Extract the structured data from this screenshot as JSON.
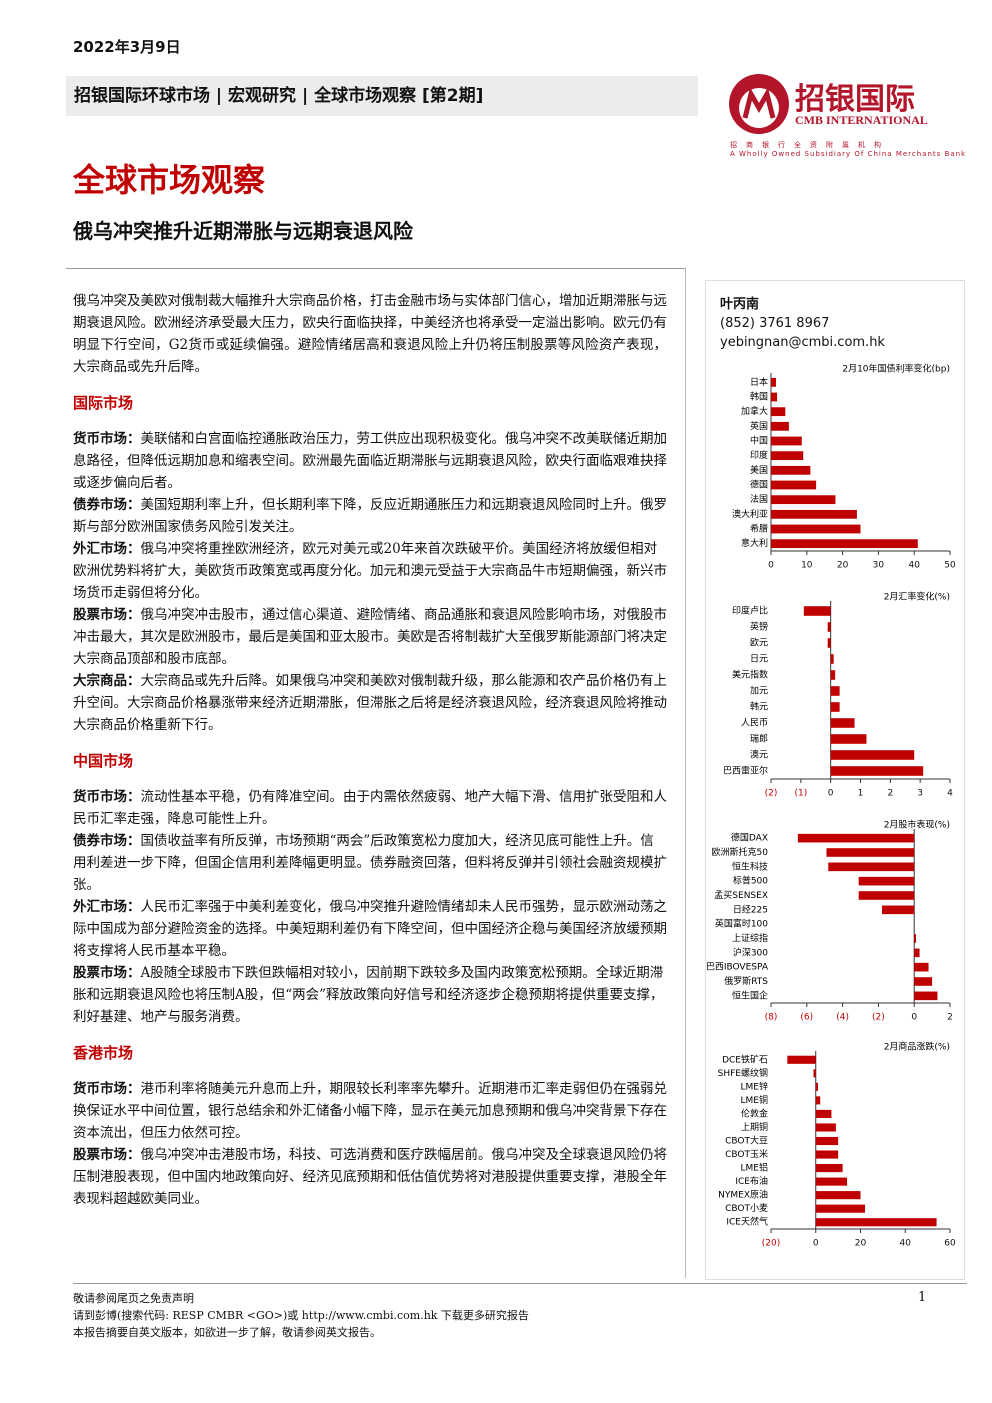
{
  "header": {
    "date": "2022年3月9日",
    "breadcrumb": "招银国际环球市场 | 宏观研究 | 全球市场观察 [第2期]",
    "logo_name": "招银国际",
    "logo_en": "CMB INTERNATIONAL",
    "logo_sub1": "招商银行全资附属机构",
    "logo_sub2": "A Wholly Owned Subsidiary Of China Merchants Bank"
  },
  "title": "全球市场观察",
  "subtitle": "俄乌冲突推升近期滞胀与远期衰退风险",
  "summary": "俄乌冲突及美欧对俄制裁大幅推升大宗商品价格，打击金融市场与实体部门信心，增加近期滞胀与远期衰退风险。欧洲经济承受最大压力，欧央行面临抉择，中美经济也将承受一定溢出影响。欧元仍有明显下行空间，G2货币或延续偏强。避险情绪居高和衰退风险上升仍将压制股票等风险资产表现，大宗商品或先升后降。",
  "sections": [
    {
      "heading": "国际市场",
      "items": [
        {
          "label": "货币市场：",
          "text": "美联储和白宫面临控通胀政治压力，劳工供应出现积极变化。俄乌冲突不改美联储近期加息路径，但降低远期加息和缩表空间。欧洲最先面临近期滞胀与远期衰退风险，欧央行面临艰难抉择或逐步偏向后者。"
        },
        {
          "label": "债券市场：",
          "text": "美国短期利率上升，但长期利率下降，反应近期通胀压力和远期衰退风险同时上升。俄罗斯与部分欧洲国家债务风险引发关注。"
        },
        {
          "label": "外汇市场：",
          "text": "俄乌冲突将重挫欧洲经济，欧元对美元或20年来首次跌破平价。美国经济将放缓但相对欧洲优势料将扩大，美欧货币政策宽或再度分化。加元和澳元受益于大宗商品牛市短期偏强，新兴市场货币走弱但将分化。"
        },
        {
          "label": "股票市场：",
          "text": "俄乌冲突冲击股市，通过信心渠道、避险情绪、商品通胀和衰退风险影响市场，对俄股市冲击最大，其次是欧洲股市，最后是美国和亚太股市。美欧是否将制裁扩大至俄罗斯能源部门将决定大宗商品顶部和股市底部。"
        },
        {
          "label": "大宗商品：",
          "text": "大宗商品或先升后降。如果俄乌冲突和美欧对俄制裁升级，那么能源和农产品价格仍有上升空间。大宗商品价格暴涨带来经济近期滞胀，但滞胀之后将是经济衰退风险，经济衰退风险将推动大宗商品价格重新下行。"
        }
      ]
    },
    {
      "heading": "中国市场",
      "items": [
        {
          "label": "货币市场：",
          "text": "流动性基本平稳，仍有降准空间。由于内需依然疲弱、地产大幅下滑、信用扩张受阻和人民币汇率走强，降息可能性上升。"
        },
        {
          "label": "债券市场：",
          "text": "国债收益率有所反弹，市场预期“两会”后政策宽松力度加大，经济见底可能性上升。信用利差进一步下降，但国企信用利差降幅更明显。债券融资回落，但料将反弹并引领社会融资规模扩张。"
        },
        {
          "label": "外汇市场：",
          "text": "人民币汇率强于中美利差变化，俄乌冲突推升避险情绪却未人民币强势，显示欧洲动荡之际中国成为部分避险资金的选择。中美短期利差仍有下降空间，但中国经济企稳与美国经济放缓预期将支撑将人民币基本平稳。"
        },
        {
          "label": "股票市场：",
          "text": "A股随全球股市下跌但跌幅相对较小，因前期下跌较多及国内政策宽松预期。全球近期滞胀和远期衰退风险也将压制A股，但“两会”释放政策向好信号和经济逐步企稳预期将提供重要支撑，利好基建、地产与服务消费。"
        }
      ]
    },
    {
      "heading": "香港市场",
      "items": [
        {
          "label": "货币市场：",
          "text": "港币利率将随美元升息而上升，期限较长利率率先攀升。近期港币汇率走弱但仍在强弱兑换保证水平中间位置，银行总结余和外汇储备小幅下降，显示在美元加息预期和俄乌冲突背景下存在资本流出，但压力依然可控。"
        },
        {
          "label": "股票市场：",
          "text": "俄乌冲突冲击港股市场，科技、可选消费和医疗跌幅居前。俄乌冲突及全球衰退风险仍将压制港股表现，但中国内地政策向好、经济见底预期和低估值优势将对港股提供重要支撑，港股全年表现料超越欧美同业。"
        }
      ]
    }
  ],
  "author": {
    "name": "叶丙南",
    "phone": "(852) 3761 8967",
    "email": "yebingnan@cmbi.com.hk"
  },
  "chart_data": [
    {
      "type": "hbar",
      "title": "2月10年国债利率变化(bp)",
      "color": "#c00000",
      "categories": [
        "日本",
        "韩国",
        "加拿大",
        "英国",
        "中国",
        "印度",
        "美国",
        "德国",
        "法国",
        "澳大利亚",
        "希腊",
        "意大利"
      ],
      "values": [
        1.4,
        1.7,
        4,
        5,
        8.6,
        9,
        11,
        12.6,
        18,
        24,
        25,
        41
      ],
      "xlim": [
        0,
        50
      ],
      "xticks": [
        0,
        10,
        20,
        30,
        40,
        50
      ]
    },
    {
      "type": "hbar",
      "title": "2月汇率变化(%)",
      "color": "#c00000",
      "categories": [
        "印度卢比",
        "英镑",
        "欧元",
        "日元",
        "美元指数",
        "加元",
        "韩元",
        "人民币",
        "瑞郎",
        "澳元",
        "巴西雷亚尔"
      ],
      "values": [
        -0.9,
        -0.1,
        -0.1,
        0.1,
        0.15,
        0.3,
        0.3,
        0.8,
        1.2,
        2.8,
        3.1
      ],
      "xlim": [
        -2,
        4
      ],
      "xticks": [
        {
          "value": -2,
          "label": "(2)"
        },
        {
          "value": -1,
          "label": "(1)"
        },
        0,
        1,
        2,
        3,
        4
      ]
    },
    {
      "type": "hbar",
      "title": "2月股市表现(%)",
      "color": "#c00000",
      "categories": [
        "德国DAX",
        "欧洲斯托克50",
        "恒生科技",
        "标普500",
        "孟买SENSEX",
        "日经225",
        "英国富时100",
        "上证综指",
        "沪深300",
        "巴西IBOVESPA",
        "俄罗斯RTS",
        "恒生国企"
      ],
      "values": [
        -6.5,
        -4.9,
        -4.8,
        -3.1,
        -3.1,
        -1.8,
        0,
        0.1,
        0.3,
        0.8,
        1,
        1.3
      ],
      "xlim": [
        -8,
        2
      ],
      "xticks": [
        {
          "value": -8,
          "label": "(8)"
        },
        {
          "value": -6,
          "label": "(6)"
        },
        {
          "value": -4,
          "label": "(4)"
        },
        {
          "value": -2,
          "label": "(2)"
        },
        0,
        2
      ]
    },
    {
      "type": "hbar",
      "title": "2月商品涨跌(%)",
      "color": "#c00000",
      "categories": [
        "DCE铁矿石",
        "SHFE螺纹钢",
        "LME锌",
        "LME铜",
        "伦敦金",
        "上期铜",
        "CBOT大豆",
        "CBOT玉米",
        "LME铝",
        "ICE布油",
        "NYMEX原油",
        "CBOT小麦",
        "ICE天然气"
      ],
      "values": [
        -12.7,
        -1,
        1,
        2,
        7,
        9,
        10,
        10,
        12,
        14,
        20,
        22,
        54
      ],
      "xlim": [
        -20,
        60
      ],
      "xticks": [
        {
          "value": -20,
          "label": "(20)"
        },
        0,
        20,
        40,
        60
      ]
    }
  ],
  "footer": {
    "disclaimer": "敬请参阅尾页之免责声明",
    "bloomberg": "请到彭博(搜索代码: RESP CMBR <GO>)或 http://www.cmbi.com.hk 下载更多研究报告",
    "note": "本报告摘要自英文版本，如欲进一步了解，敬请参阅英文报告。",
    "page": "1"
  }
}
